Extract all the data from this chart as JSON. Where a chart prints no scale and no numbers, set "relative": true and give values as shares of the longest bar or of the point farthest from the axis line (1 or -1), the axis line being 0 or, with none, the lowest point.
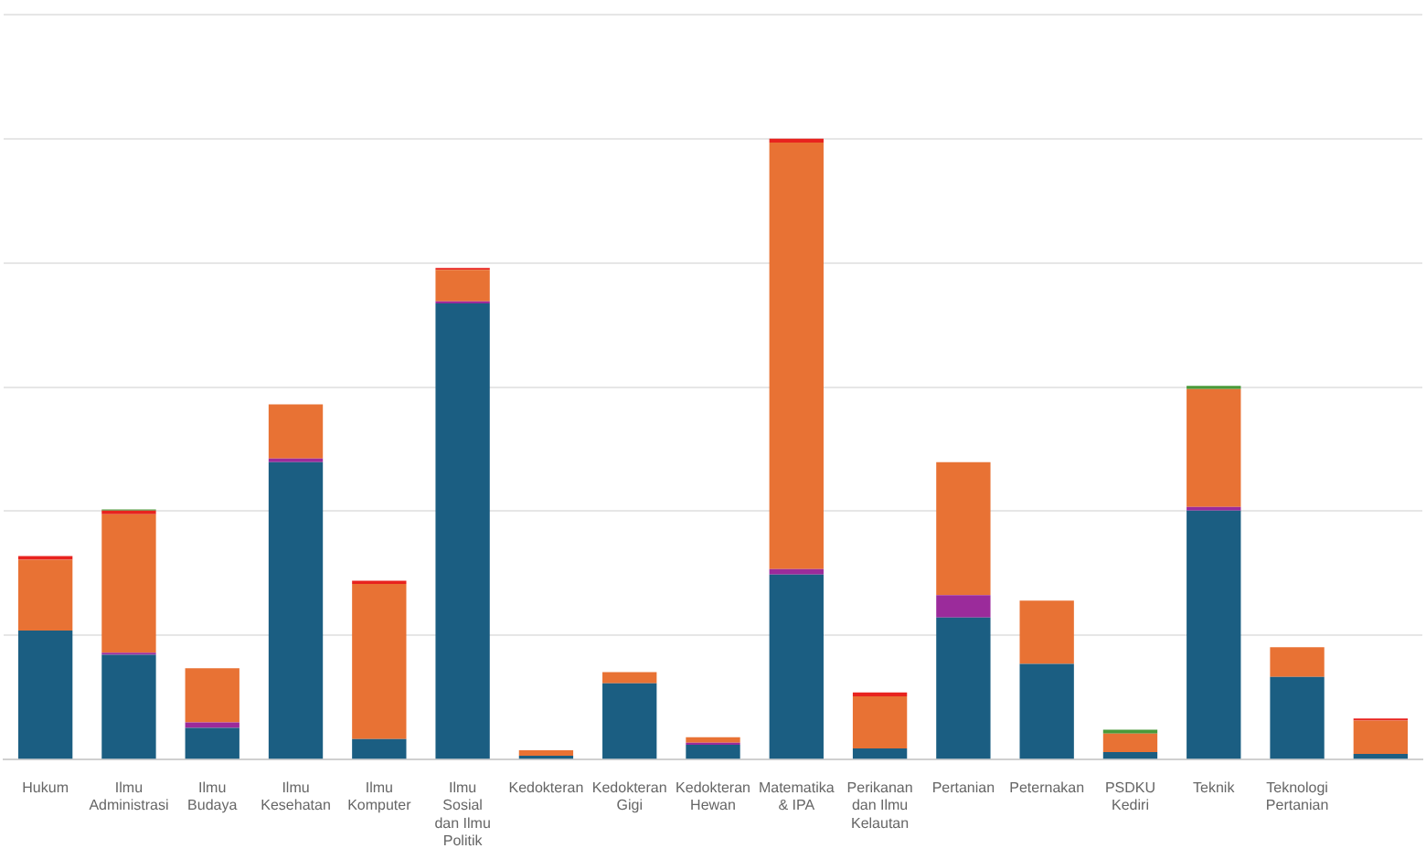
{
  "chart_data": {
    "type": "bar",
    "stacked": true,
    "relative": true,
    "grid": "y",
    "legend": false,
    "categories": [
      "Hukum",
      "Ilmu Administrasi",
      "Ilmu Budaya",
      "Ilmu Kesehatan",
      "Ilmu Komputer",
      "Ilmu Sosial dan Ilmu Politik",
      "Kedokteran",
      "Kedokteran Gigi",
      "Kedokteran Hewan",
      "Matematika & IPA",
      "Perikanan dan Ilmu Kelautan",
      "Pertanian",
      "Peternakan",
      "PSDKU Kediri",
      "Teknik",
      "Teknologi Pertanian",
      null
    ],
    "series": [
      {
        "color": "#1b5e82",
        "values": [
          0.208,
          0.169,
          0.051,
          0.479,
          0.033,
          0.735,
          0.006,
          0.123,
          0.024,
          0.298,
          0.018,
          0.229,
          0.154,
          0.012,
          0.401,
          0.133,
          0.009
        ]
      },
      {
        "color": "#9b2b9b",
        "values": [
          0,
          0.003,
          0.009,
          0.006,
          0,
          0.003,
          0,
          0,
          0.003,
          0.009,
          0,
          0.036,
          0,
          0,
          0.006,
          0,
          0
        ]
      },
      {
        "color": "#e87234",
        "values": [
          0.114,
          0.223,
          0.087,
          0.087,
          0.25,
          0.051,
          0.009,
          0.018,
          0.009,
          0.687,
          0.084,
          0.214,
          0.102,
          0.03,
          0.19,
          0.048,
          0.054
        ]
      },
      {
        "color": "#e8231e",
        "values": [
          0.006,
          0.006,
          0,
          0,
          0.005,
          0.003,
          0,
          0,
          0,
          0.006,
          0.006,
          0,
          0,
          0,
          0,
          0,
          0.003
        ]
      },
      {
        "color": "#4a9a3a",
        "values": [
          0,
          0.002,
          0,
          0,
          0,
          0,
          0,
          0,
          0,
          0,
          0,
          0,
          0,
          0.006,
          0.005,
          0,
          0
        ]
      }
    ]
  }
}
